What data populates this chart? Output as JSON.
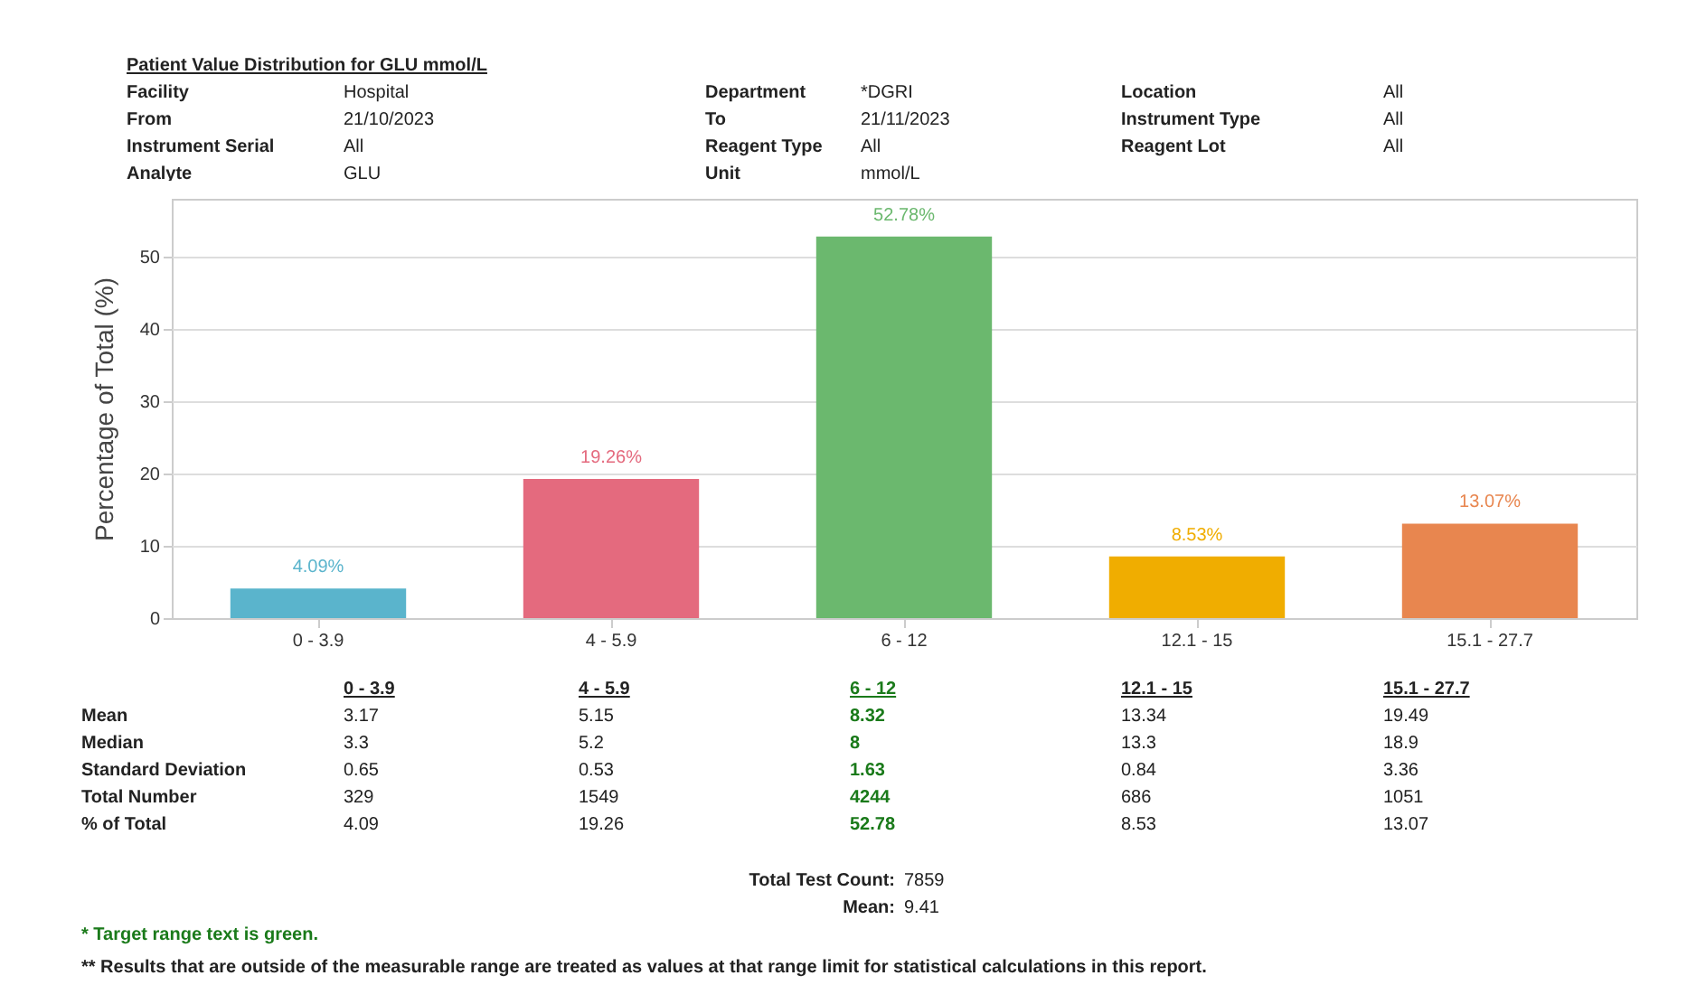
{
  "chart_data": {
    "type": "bar",
    "title": "Patient Value Distribution for GLU mmol/L",
    "ylabel": "Percentage of Total (%)",
    "categories": [
      "0 - 3.9",
      "4 - 5.9",
      "6 - 12",
      "12.1 - 15",
      "15.1 - 27.7"
    ],
    "values": [
      4.09,
      19.26,
      52.78,
      8.53,
      13.07
    ],
    "colors": [
      "#5ab4cc",
      "#e46a7e",
      "#6bb86e",
      "#f0ad00",
      "#e8864f"
    ],
    "value_labels": [
      "4.09%",
      "19.26%",
      "52.78%",
      "8.53%",
      "13.07%"
    ],
    "ylim": [
      0,
      58
    ],
    "yticks": [
      0,
      10,
      20,
      30,
      40,
      50
    ],
    "grid": "y",
    "annotations": [
      "Facility",
      "Hospital",
      "Department",
      "*DGRI",
      "Location",
      "All",
      "From",
      "21/10/2023",
      "To",
      "21/11/2023",
      "Instrument Type",
      "All",
      "Instrument Serial",
      "All",
      "Reagent Type",
      "All",
      "Reagent Lot",
      "All",
      "Analyte",
      "GLU",
      "Unit",
      "mmol/L",
      "Mean",
      "3.17",
      "5.15",
      "8.32",
      "13.34",
      "19.49",
      "Median",
      "3.3",
      "5.2",
      "8",
      "13.3",
      "18.9",
      "Standard Deviation",
      "0.65",
      "0.53",
      "1.63",
      "0.84",
      "3.36",
      "Total Number",
      "329",
      "1549",
      "4244",
      "686",
      "1051",
      "% of Total",
      "4.09",
      "19.26",
      "52.78",
      "8.53",
      "13.07",
      "Total Test Count:",
      "7859",
      "Mean:",
      "9.41",
      "* Target range text is green.",
      "** Results that are outside of the measurable range are treated as values at that range limit for statistical calculations in this report."
    ]
  }
}
